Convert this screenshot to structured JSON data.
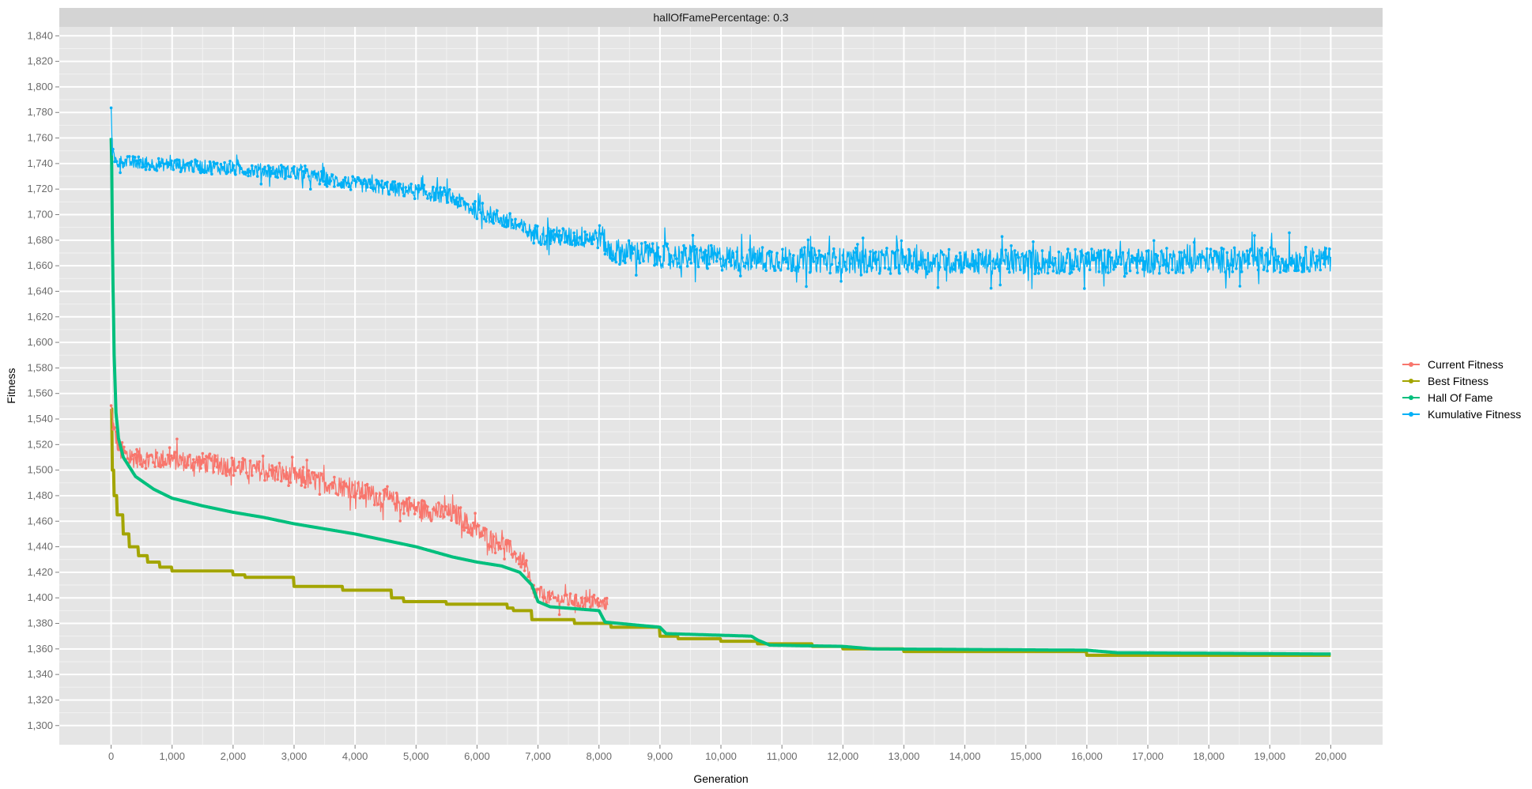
{
  "chart_data": {
    "type": "line",
    "facet_label": "hallOfFamePercentage: 0.3",
    "xlabel": "Generation",
    "ylabel": "Fitness",
    "xlim": [
      -850,
      20850
    ],
    "ylim": [
      1285,
      1847
    ],
    "x_ticks": [
      0,
      1000,
      2000,
      3000,
      4000,
      5000,
      6000,
      7000,
      8000,
      9000,
      10000,
      11000,
      12000,
      13000,
      14000,
      15000,
      16000,
      17000,
      18000,
      19000,
      20000
    ],
    "x_tick_labels": [
      "0",
      "1,000",
      "2,000",
      "3,000",
      "4,000",
      "5,000",
      "6,000",
      "7,000",
      "8,000",
      "9,000",
      "10,000",
      "11,000",
      "12,000",
      "13,000",
      "14,000",
      "15,000",
      "16,000",
      "17,000",
      "18,000",
      "19,000",
      "20,000"
    ],
    "y_ticks": [
      1300,
      1320,
      1340,
      1360,
      1380,
      1400,
      1420,
      1440,
      1460,
      1480,
      1500,
      1520,
      1540,
      1560,
      1580,
      1600,
      1620,
      1640,
      1660,
      1680,
      1700,
      1720,
      1740,
      1760,
      1780,
      1800,
      1820,
      1840
    ],
    "y_tick_labels": [
      "1,300",
      "1,320",
      "1,340",
      "1,360",
      "1,380",
      "1,400",
      "1,420",
      "1,440",
      "1,460",
      "1,480",
      "1,500",
      "1,520",
      "1,540",
      "1,560",
      "1,580",
      "1,600",
      "1,620",
      "1,640",
      "1,660",
      "1,680",
      "1,700",
      "1,720",
      "1,740",
      "1,760",
      "1,780",
      "1,800",
      "1,820",
      "1,840"
    ],
    "grid": true,
    "background": "#e5e5e5",
    "legend_position": "right",
    "series": [
      {
        "name": "Current Fitness",
        "color": "#f8766d",
        "x_end": 8150,
        "trend": [
          [
            0,
            1548
          ],
          [
            50,
            1530
          ],
          [
            150,
            1515
          ],
          [
            300,
            1510
          ],
          [
            1000,
            1508
          ],
          [
            2000,
            1503
          ],
          [
            3000,
            1495
          ],
          [
            4000,
            1485
          ],
          [
            5000,
            1470
          ],
          [
            5700,
            1465
          ],
          [
            5900,
            1455
          ],
          [
            6500,
            1440
          ],
          [
            6800,
            1425
          ],
          [
            6900,
            1405
          ],
          [
            7200,
            1400
          ],
          [
            8100,
            1395
          ]
        ],
        "noise": [
          [
            0,
            8
          ],
          [
            5800,
            8
          ],
          [
            6900,
            6
          ],
          [
            8150,
            5
          ]
        ]
      },
      {
        "name": "Best Fitness",
        "color": "#a3a500",
        "x_end": 20000,
        "steps": [
          [
            0,
            1548
          ],
          [
            20,
            1500
          ],
          [
            50,
            1480
          ],
          [
            100,
            1465
          ],
          [
            200,
            1450
          ],
          [
            300,
            1440
          ],
          [
            450,
            1433
          ],
          [
            600,
            1428
          ],
          [
            800,
            1424
          ],
          [
            1000,
            1421
          ],
          [
            2000,
            1418
          ],
          [
            2200,
            1416
          ],
          [
            3000,
            1409
          ],
          [
            3800,
            1406
          ],
          [
            4600,
            1400
          ],
          [
            4800,
            1397
          ],
          [
            5500,
            1395
          ],
          [
            6500,
            1392
          ],
          [
            6600,
            1390
          ],
          [
            6900,
            1383
          ],
          [
            7600,
            1380
          ],
          [
            8200,
            1377
          ],
          [
            9000,
            1370
          ],
          [
            9300,
            1368
          ],
          [
            10000,
            1366
          ],
          [
            10600,
            1364
          ],
          [
            11500,
            1362
          ],
          [
            12000,
            1360
          ],
          [
            13000,
            1358
          ],
          [
            16000,
            1355
          ],
          [
            20000,
            1355
          ]
        ]
      },
      {
        "name": "Hall Of Fame",
        "color": "#00bf7d",
        "x_end": 20000,
        "trend": [
          [
            0,
            1760
          ],
          [
            10,
            1740
          ],
          [
            25,
            1660
          ],
          [
            50,
            1590
          ],
          [
            80,
            1545
          ],
          [
            120,
            1525
          ],
          [
            200,
            1510
          ],
          [
            400,
            1495
          ],
          [
            700,
            1485
          ],
          [
            1000,
            1478
          ],
          [
            1500,
            1472
          ],
          [
            2000,
            1467
          ],
          [
            2500,
            1463
          ],
          [
            3000,
            1458
          ],
          [
            4000,
            1450
          ],
          [
            5000,
            1440
          ],
          [
            5600,
            1432
          ],
          [
            6000,
            1428
          ],
          [
            6400,
            1425
          ],
          [
            6700,
            1420
          ],
          [
            6900,
            1410
          ],
          [
            7000,
            1397
          ],
          [
            7200,
            1393
          ],
          [
            8000,
            1390
          ],
          [
            8100,
            1381
          ],
          [
            9000,
            1377
          ],
          [
            9100,
            1372
          ],
          [
            10500,
            1370
          ],
          [
            10600,
            1367
          ],
          [
            10800,
            1363
          ],
          [
            12000,
            1362
          ],
          [
            12500,
            1360
          ],
          [
            16000,
            1359
          ],
          [
            16500,
            1357
          ],
          [
            20000,
            1356
          ]
        ]
      },
      {
        "name": "Kumulative Fitness",
        "color": "#00b0f6",
        "x_end": 20000,
        "trend": [
          [
            0,
            1788
          ],
          [
            20,
            1750
          ],
          [
            60,
            1742
          ],
          [
            500,
            1740
          ],
          [
            1000,
            1739
          ],
          [
            2000,
            1736
          ],
          [
            3000,
            1733
          ],
          [
            3500,
            1728
          ],
          [
            4000,
            1724
          ],
          [
            5000,
            1718
          ],
          [
            5500,
            1715
          ],
          [
            5900,
            1705
          ],
          [
            6500,
            1695
          ],
          [
            6900,
            1685
          ],
          [
            7500,
            1682
          ],
          [
            8050,
            1683
          ],
          [
            8150,
            1672
          ],
          [
            9000,
            1668
          ],
          [
            10000,
            1666
          ],
          [
            12000,
            1664
          ],
          [
            15000,
            1663
          ],
          [
            20000,
            1665
          ]
        ],
        "noise": [
          [
            0,
            5
          ],
          [
            5000,
            6
          ],
          [
            7500,
            8
          ],
          [
            8150,
            10
          ],
          [
            20000,
            10
          ]
        ]
      }
    ]
  }
}
